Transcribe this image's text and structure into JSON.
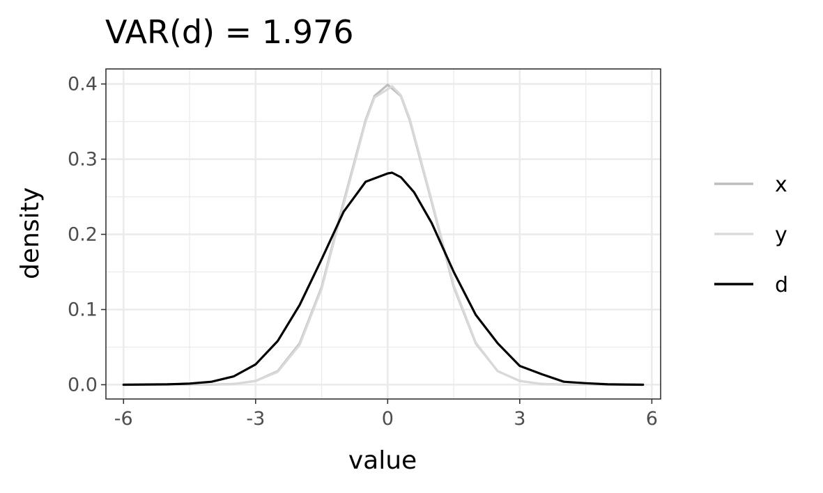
{
  "chart_data": {
    "type": "line",
    "title": "VAR(d) =  1.976",
    "xlabel": "value",
    "ylabel": "density",
    "xlim": [
      -6.4,
      6.2
    ],
    "ylim": [
      -0.019,
      0.42
    ],
    "x_ticks": [
      -6,
      -3,
      0,
      3,
      6
    ],
    "x_tick_labels": [
      "-6",
      "-3",
      "0",
      "3",
      "6"
    ],
    "y_ticks": [
      0.0,
      0.1,
      0.2,
      0.3,
      0.4
    ],
    "y_tick_labels": [
      "0.0",
      "0.1",
      "0.2",
      "0.3",
      "0.4"
    ],
    "grid": true,
    "legend_position": "right",
    "series": [
      {
        "name": "x",
        "color": "#bebebe",
        "x": [
          -6.0,
          -5.0,
          -4.0,
          -3.5,
          -3.0,
          -2.5,
          -2.0,
          -1.5,
          -1.0,
          -0.5,
          -0.3,
          0.0,
          0.3,
          0.5,
          1.0,
          1.5,
          2.0,
          2.5,
          3.0,
          3.5,
          4.0,
          5.0,
          5.8
        ],
        "values": [
          0.0,
          0.0,
          0.0002,
          0.001,
          0.005,
          0.018,
          0.055,
          0.13,
          0.243,
          0.352,
          0.384,
          0.399,
          0.384,
          0.352,
          0.243,
          0.13,
          0.055,
          0.018,
          0.005,
          0.001,
          0.0002,
          0.0,
          0.0
        ]
      },
      {
        "name": "y",
        "color": "#d9d9d9",
        "x": [
          -6.0,
          -5.0,
          -4.0,
          -3.5,
          -3.0,
          -2.5,
          -2.0,
          -1.5,
          -1.0,
          -0.5,
          -0.3,
          0.0,
          0.1,
          0.3,
          0.5,
          1.0,
          1.5,
          2.0,
          2.5,
          3.0,
          3.5,
          4.0,
          5.0,
          5.8
        ],
        "values": [
          0.0,
          0.0,
          0.0002,
          0.001,
          0.005,
          0.017,
          0.053,
          0.128,
          0.24,
          0.35,
          0.382,
          0.393,
          0.397,
          0.385,
          0.354,
          0.245,
          0.132,
          0.056,
          0.018,
          0.005,
          0.001,
          0.0002,
          0.0,
          0.0
        ]
      },
      {
        "name": "d",
        "color": "#000000",
        "x": [
          -6.0,
          -5.0,
          -4.5,
          -4.0,
          -3.5,
          -3.0,
          -2.5,
          -2.0,
          -1.5,
          -1.0,
          -0.5,
          0.0,
          0.1,
          0.3,
          0.6,
          1.0,
          1.5,
          2.0,
          2.5,
          3.0,
          3.5,
          4.0,
          4.5,
          5.0,
          5.8
        ],
        "values": [
          0.0,
          0.0005,
          0.0015,
          0.004,
          0.011,
          0.027,
          0.058,
          0.106,
          0.167,
          0.23,
          0.27,
          0.281,
          0.282,
          0.276,
          0.256,
          0.215,
          0.15,
          0.093,
          0.055,
          0.025,
          0.014,
          0.004,
          0.002,
          0.0005,
          0.0
        ]
      }
    ]
  }
}
